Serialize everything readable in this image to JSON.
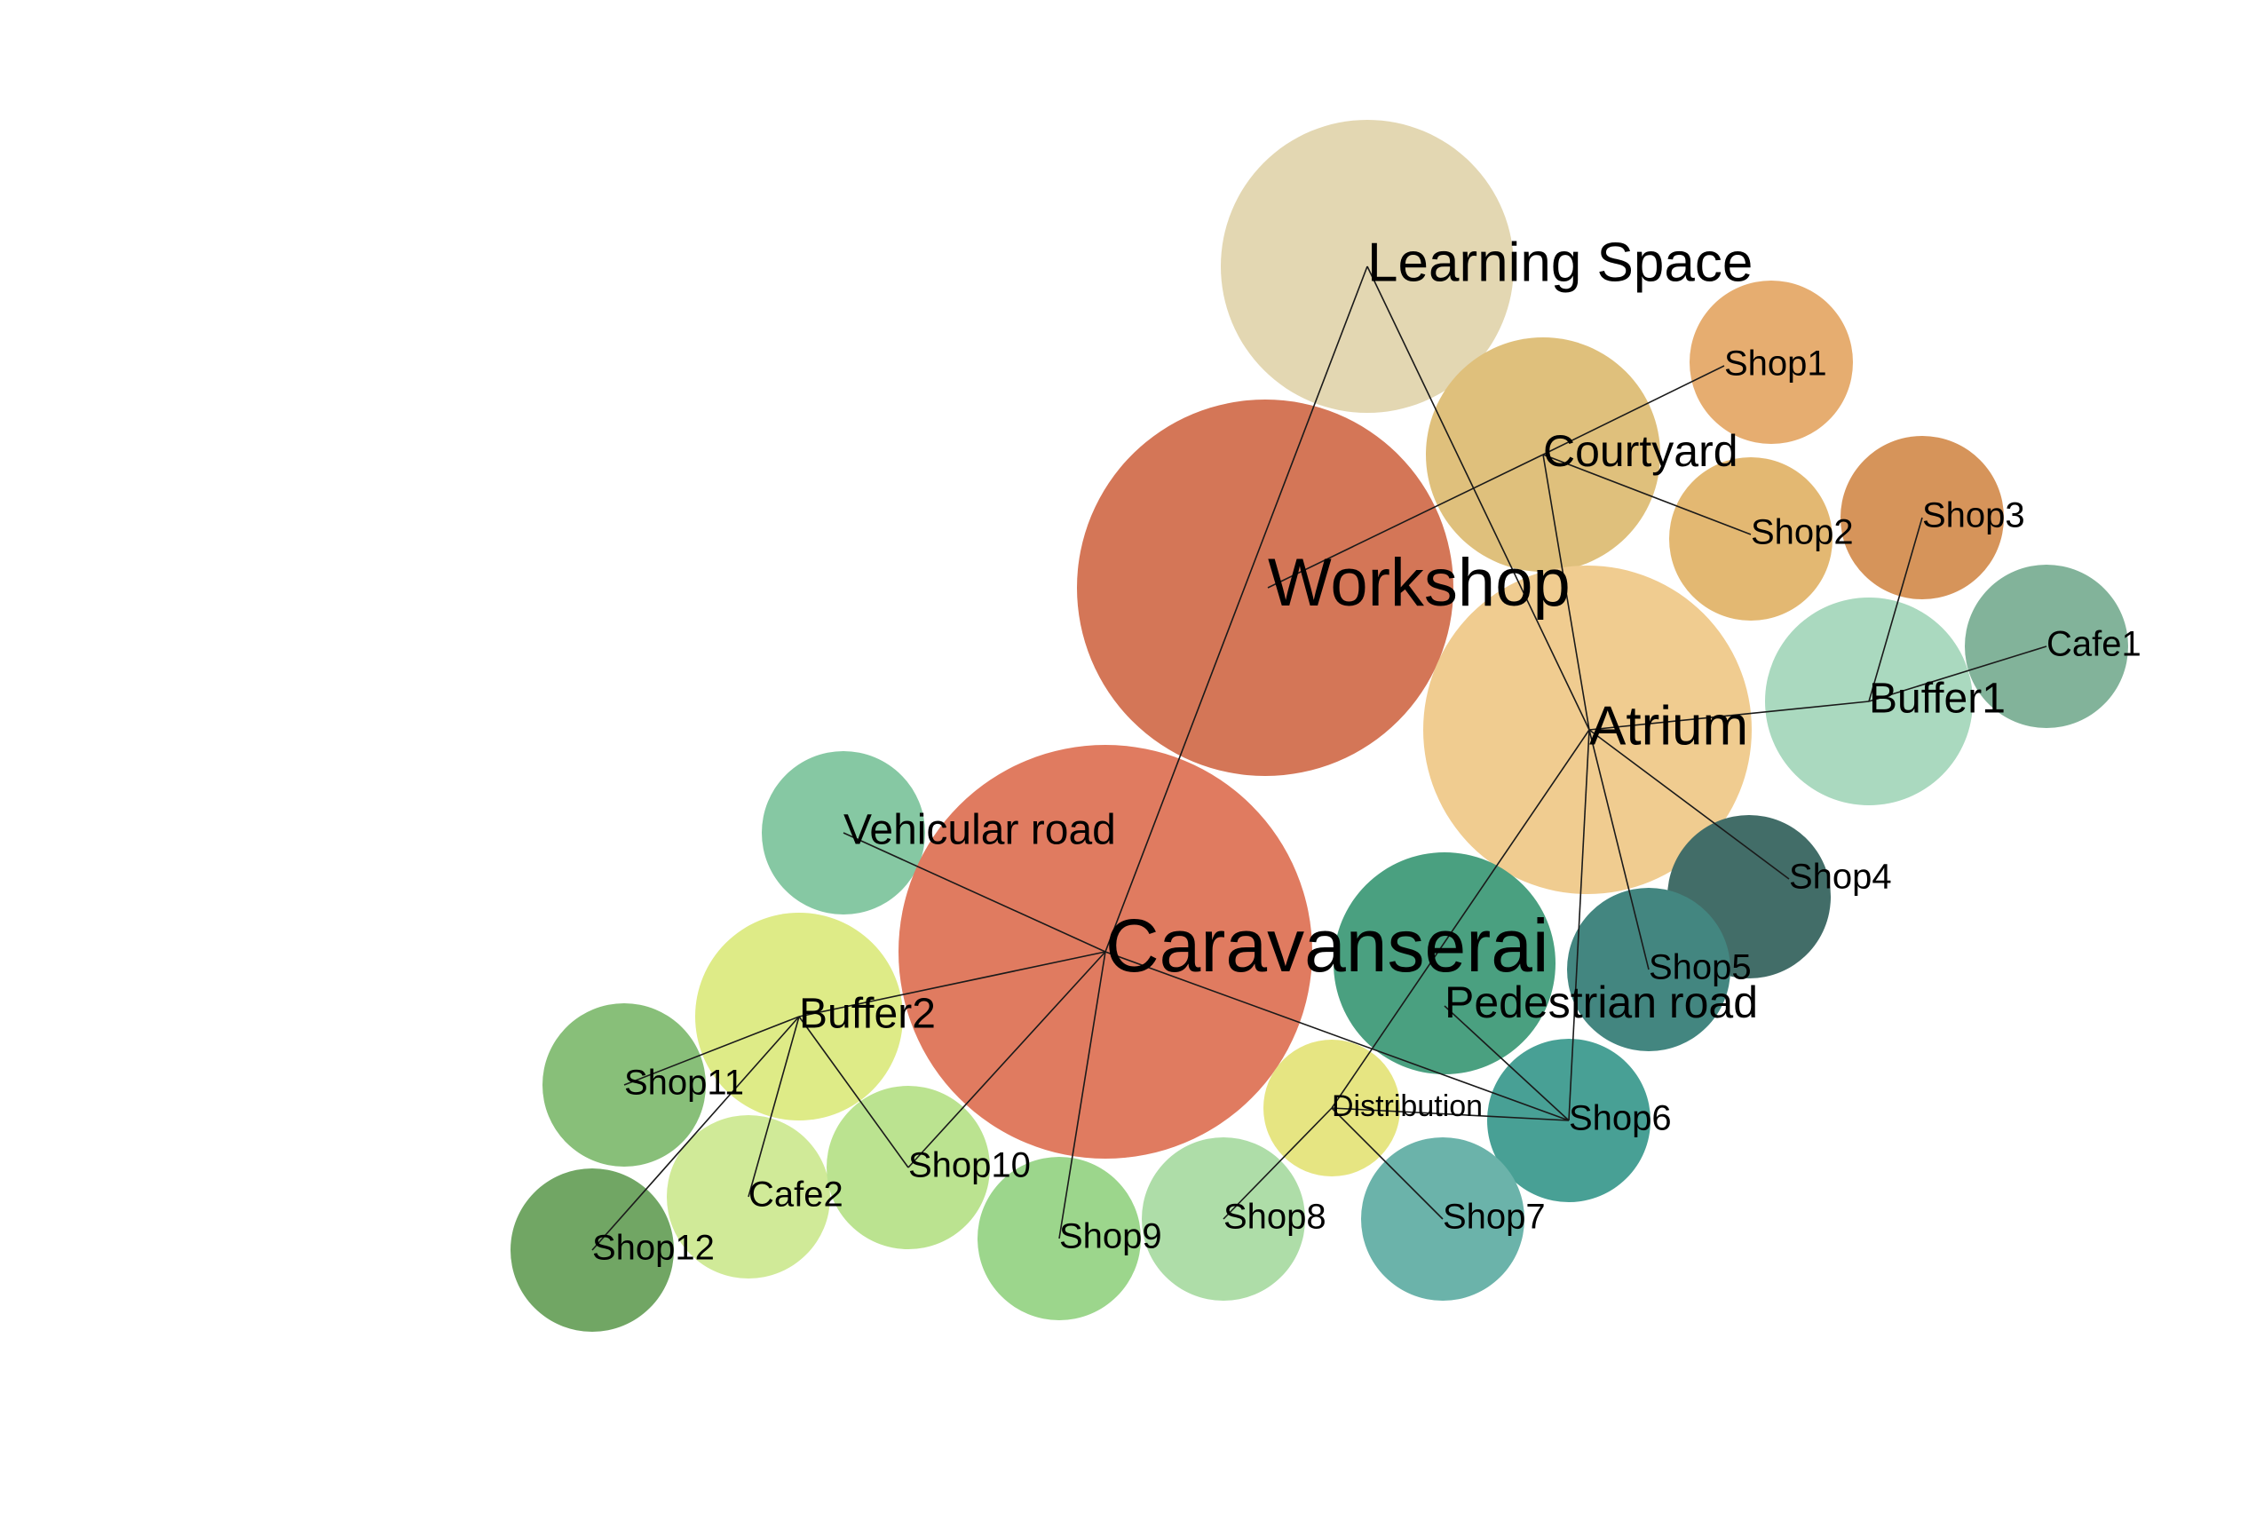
{
  "nodes": [
    {
      "id": "learning_space",
      "label": "Learning Space",
      "color": "#e3d7b2"
    },
    {
      "id": "shop1",
      "label": "Shop1",
      "color": "#e6ad70"
    },
    {
      "id": "courtyard",
      "label": "Courtyard",
      "color": "#dfc07c"
    },
    {
      "id": "shop2",
      "label": "Shop2",
      "color": "#e3b872"
    },
    {
      "id": "shop3",
      "label": "Shop3",
      "color": "#d6945a"
    },
    {
      "id": "workshop",
      "label": "Workshop",
      "color": "#d47657"
    },
    {
      "id": "atrium",
      "label": "Atrium",
      "color": "#f0cc90"
    },
    {
      "id": "cafe1",
      "label": "Cafe1",
      "color": "#82b39a"
    },
    {
      "id": "buffer1",
      "label": "Buffer1",
      "color": "#aad9bf"
    },
    {
      "id": "vehicular_road",
      "label": "Vehicular road",
      "color": "#86c8a3"
    },
    {
      "id": "caravanserai",
      "label": "Caravanserai",
      "color": "#e07b60"
    },
    {
      "id": "shop4",
      "label": "Shop4",
      "color": "#426d68"
    },
    {
      "id": "pedestrian_road",
      "label": "Pedestrian road",
      "color": "#4aa080"
    },
    {
      "id": "shop5",
      "label": "Shop5",
      "color": "#438680"
    },
    {
      "id": "buffer2",
      "label": "Buffer2",
      "color": "#deeb87"
    },
    {
      "id": "shop11",
      "label": "Shop11",
      "color": "#88bf79"
    },
    {
      "id": "distribution",
      "label": "Distribution",
      "color": "#e6e582"
    },
    {
      "id": "shop6",
      "label": "Shop6",
      "color": "#48a095"
    },
    {
      "id": "cafe2",
      "label": "Cafe2",
      "color": "#d0ea98"
    },
    {
      "id": "shop10",
      "label": "Shop10",
      "color": "#bbe390"
    },
    {
      "id": "shop9",
      "label": "Shop9",
      "color": "#9cd68c"
    },
    {
      "id": "shop8",
      "label": "Shop8",
      "color": "#aedda8"
    },
    {
      "id": "shop7",
      "label": "Shop7",
      "color": "#6bb3aa"
    },
    {
      "id": "shop12",
      "label": "Shop12",
      "color": "#71a664"
    }
  ],
  "edges": [
    [
      "learning_space",
      "caravanserai"
    ],
    [
      "learning_space",
      "atrium"
    ],
    [
      "courtyard",
      "shop1"
    ],
    [
      "courtyard",
      "shop2"
    ],
    [
      "courtyard",
      "workshop"
    ],
    [
      "courtyard",
      "atrium"
    ],
    [
      "buffer1",
      "shop3"
    ],
    [
      "buffer1",
      "cafe1"
    ],
    [
      "atrium",
      "buffer1"
    ],
    [
      "atrium",
      "shop4"
    ],
    [
      "atrium",
      "shop5"
    ],
    [
      "atrium",
      "shop6"
    ],
    [
      "atrium",
      "distribution"
    ],
    [
      "caravanserai",
      "vehicular_road"
    ],
    [
      "caravanserai",
      "shop6"
    ],
    [
      "caravanserai",
      "buffer2"
    ],
    [
      "caravanserai",
      "shop10"
    ],
    [
      "caravanserai",
      "shop9"
    ],
    [
      "pedestrian_road",
      "shop6"
    ],
    [
      "distribution",
      "shop6"
    ],
    [
      "distribution",
      "shop7"
    ],
    [
      "distribution",
      "shop8"
    ],
    [
      "buffer2",
      "shop11"
    ],
    [
      "buffer2",
      "cafe2"
    ],
    [
      "buffer2",
      "shop10"
    ],
    [
      "buffer2",
      "shop12"
    ]
  ]
}
